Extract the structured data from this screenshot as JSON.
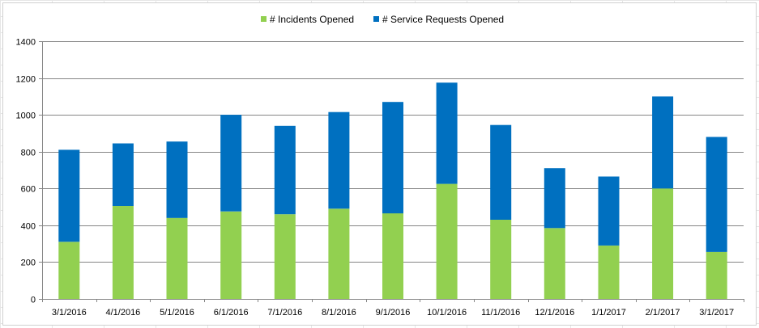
{
  "chart_data": {
    "type": "bar",
    "stacked": true,
    "categories": [
      "3/1/2016",
      "4/1/2016",
      "5/1/2016",
      "6/1/2016",
      "7/1/2016",
      "8/1/2016",
      "9/1/2016",
      "10/1/2016",
      "11/1/2016",
      "12/1/2016",
      "1/1/2017",
      "2/1/2017",
      "3/1/2017"
    ],
    "series": [
      {
        "name": "# Incidents Opened",
        "color": "#92d050",
        "values": [
          310,
          505,
          440,
          475,
          460,
          490,
          465,
          625,
          430,
          385,
          290,
          600,
          255
        ]
      },
      {
        "name": "# Service Requests Opened",
        "color": "#0070c0",
        "values": [
          500,
          340,
          415,
          525,
          480,
          525,
          605,
          550,
          515,
          325,
          375,
          500,
          625
        ]
      }
    ],
    "ylim": [
      0,
      1400
    ],
    "yticks": [
      0,
      200,
      400,
      600,
      800,
      1000,
      1200,
      1400
    ],
    "grid": true,
    "legend": "top-center",
    "title": "",
    "xlabel": "",
    "ylabel": ""
  }
}
